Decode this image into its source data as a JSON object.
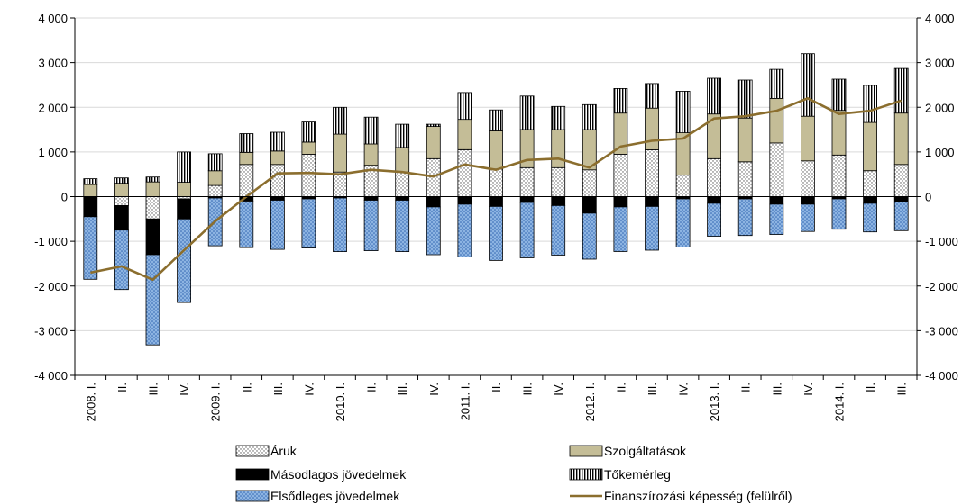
{
  "chart_data": {
    "type": "bar",
    "stacked": true,
    "title": "",
    "xlabel": "",
    "ylabel": "",
    "ylim": [
      -4000,
      4000
    ],
    "y_ticks": [
      -4000,
      -3000,
      -2000,
      -1000,
      0,
      1000,
      2000,
      3000,
      4000
    ],
    "y_tick_labels": [
      "-4 000",
      "-3 000",
      "-2 000",
      "-1 000",
      "0",
      "1 000",
      "2 000",
      "3 000",
      "4 000"
    ],
    "secondary_y_axis": true,
    "grid": "horizontal",
    "legend_position": "bottom",
    "categories": [
      "2008. I.",
      "II.",
      "III.",
      "IV.",
      "2009. I.",
      "II.",
      "III.",
      "IV.",
      "2010. I.",
      "II.",
      "III.",
      "IV.",
      "2011. I.",
      "II.",
      "III.",
      "IV.",
      "2012. I.",
      "II.",
      "III.",
      "IV.",
      "2013. I.",
      "II.",
      "III.",
      "IV.",
      "2014. I.",
      "II.",
      "III."
    ],
    "series": [
      {
        "name": "Áruk",
        "kind": "bar",
        "pattern": "dots",
        "color": "#ffffff",
        "values": [
          0,
          -200,
          -500,
          -50,
          250,
          720,
          720,
          950,
          550,
          700,
          550,
          850,
          1050,
          620,
          650,
          650,
          600,
          950,
          1050,
          480,
          850,
          780,
          1200,
          800,
          930,
          580,
          720
        ]
      },
      {
        "name": "Szolgáltatások",
        "kind": "bar",
        "pattern": "solid",
        "color": "#c4bd97",
        "values": [
          270,
          300,
          330,
          320,
          330,
          270,
          300,
          270,
          850,
          480,
          550,
          720,
          680,
          850,
          850,
          850,
          900,
          920,
          930,
          950,
          1000,
          980,
          1000,
          1000,
          1000,
          1080,
          1150
        ]
      },
      {
        "name": "Másodlagos jövedelmek",
        "kind": "bar",
        "pattern": "solid",
        "color": "#000000",
        "values": [
          -450,
          -550,
          -800,
          -450,
          -30,
          -100,
          -80,
          -50,
          -30,
          -80,
          -80,
          -230,
          -170,
          -220,
          -130,
          -200,
          -370,
          -230,
          -220,
          -50,
          -150,
          -50,
          -170,
          -170,
          -50,
          -150,
          -120
        ]
      },
      {
        "name": "Tőkemérleg",
        "kind": "bar",
        "pattern": "vlines",
        "color": "#ffffff",
        "values": [
          130,
          120,
          110,
          680,
          380,
          420,
          420,
          450,
          600,
          600,
          520,
          50,
          600,
          470,
          750,
          520,
          560,
          550,
          550,
          930,
          800,
          850,
          650,
          1400,
          700,
          830,
          1000
        ]
      },
      {
        "name": "Elsődleges jövedelmek",
        "kind": "bar",
        "pattern": "dots-blue",
        "color": "#8db4e2",
        "values": [
          -1400,
          -1330,
          -2020,
          -1870,
          -1070,
          -1040,
          -1100,
          -1100,
          -1200,
          -1130,
          -1150,
          -1070,
          -1180,
          -1210,
          -1240,
          -1110,
          -1030,
          -1000,
          -980,
          -1080,
          -740,
          -820,
          -680,
          -610,
          -680,
          -640,
          -640
        ]
      },
      {
        "name": "Finanszírozási képesség (felülről)",
        "kind": "line",
        "color": "#8b6e2e",
        "values": [
          -1700,
          -1560,
          -1860,
          -1200,
          -550,
          0,
          520,
          530,
          500,
          600,
          550,
          450,
          720,
          600,
          820,
          850,
          650,
          1120,
          1250,
          1300,
          1750,
          1800,
          1920,
          2200,
          1850,
          1920,
          2150
        ]
      }
    ]
  }
}
